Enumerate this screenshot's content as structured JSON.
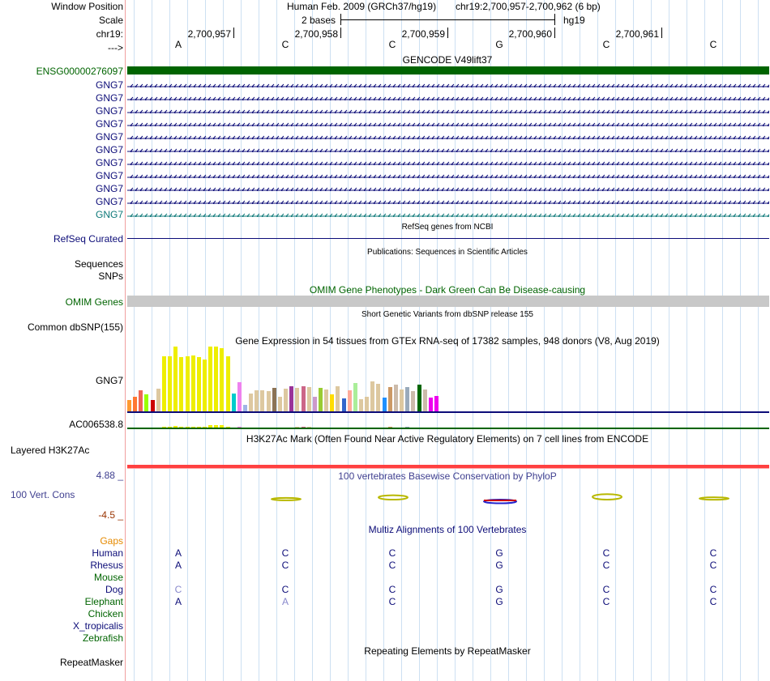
{
  "header": {
    "window_position_label": "Window Position",
    "scale_label": "Scale",
    "chrom_label": "chr19:",
    "strand_label": "--->",
    "assembly_text": "Human Feb. 2009 (GRCh37/hg19)",
    "position_text": "chr19:2,700,957-2,700,962 (6 bp)",
    "scale_text": "2 bases",
    "db_text": "hg19",
    "coords": [
      "2,700,957",
      "2,700,958",
      "2,700,959",
      "2,700,960",
      "2,700,961"
    ],
    "bases": [
      "A",
      "C",
      "C",
      "G",
      "C",
      "C"
    ]
  },
  "gencode": {
    "title": "GENCODE V49lift37",
    "gene_id": "ENSG00000276097",
    "transcripts": [
      "GNG7",
      "GNG7",
      "GNG7",
      "GNG7",
      "GNG7",
      "GNG7",
      "GNG7",
      "GNG7",
      "GNG7",
      "GNG7",
      "GNG7"
    ],
    "colors": {
      "gene": "#006400",
      "transcript": "#0c0c78",
      "last_transcript": "#0c7878"
    }
  },
  "refseq": {
    "title": "RefSeq genes from NCBI",
    "label": "RefSeq Curated"
  },
  "publications": {
    "title": "Publications: Sequences in Scientific Articles",
    "labels": [
      "Sequences",
      "SNPs"
    ]
  },
  "omim": {
    "title": "OMIM Gene Phenotypes - Dark Green Can Be Disease-causing",
    "label": "OMIM Genes"
  },
  "dbsnp": {
    "title": "Short Genetic Variants from dbSNP release 155",
    "label": "Common dbSNP(155)"
  },
  "gtex": {
    "title": "Gene Expression in 54 tissues from GTEx RNA-seq of 17382 samples, 948 donors (V8, Aug 2019)",
    "gene_label": "GNG7",
    "second_label": "AC006538.8",
    "gng7_values": [
      18,
      22,
      32,
      26,
      17,
      35,
      85,
      85,
      100,
      84,
      85,
      86,
      84,
      80,
      100,
      100,
      98,
      85,
      27,
      45,
      10,
      28,
      33,
      33,
      31,
      36,
      23,
      35,
      39,
      36,
      39,
      38,
      23,
      36,
      34,
      26,
      39,
      20,
      32,
      44,
      19,
      22,
      46,
      42,
      21,
      37,
      41,
      34,
      38,
      31,
      41,
      34,
      21,
      24
    ],
    "ac_values": [
      0,
      0,
      0,
      0,
      0,
      0,
      15,
      15,
      20,
      15,
      15,
      15,
      15,
      15,
      30,
      30,
      30,
      15,
      0,
      10,
      0,
      0,
      0,
      0,
      0,
      0,
      0,
      0,
      0,
      10,
      10,
      10,
      0,
      0,
      0,
      0,
      0,
      0,
      0,
      0,
      0,
      0,
      0,
      0,
      0,
      10,
      0,
      0,
      10,
      0,
      0,
      0,
      0,
      0
    ],
    "tissue_colors": [
      "#ff9933",
      "#ff7733",
      "#ee6655",
      "#99ff00",
      "#cc0000",
      "#ddc8a0",
      "#eeee00",
      "#eeee00",
      "#eeee00",
      "#eeee00",
      "#eeee00",
      "#eeee00",
      "#eeee00",
      "#eeee00",
      "#eeee00",
      "#eeee00",
      "#eeee00",
      "#eeee00",
      "#00cccc",
      "#ee82ee",
      "#a0b4e6",
      "#ddc8a0",
      "#ddc8a0",
      "#ddc8a0",
      "#ddc8a0",
      "#8b7355",
      "#ddc8a0",
      "#ddc8a0",
      "#993399",
      "#ddc8a0",
      "#cc6688",
      "#ddc8a0",
      "#cc99cc",
      "#99cc33",
      "#ddc8a0",
      "#ffdd00",
      "#ddc8a0",
      "#3366cc",
      "#ffaa99",
      "#aaee99",
      "#ddc8a0",
      "#ddc8a0",
      "#ddc8a0",
      "#ddc8a0",
      "#1e90ff",
      "#cc9966",
      "#ccbbaa",
      "#ddc8a0",
      "#99aabb",
      "#ccbbaa",
      "#006600",
      "#ccbbaa",
      "#ee00ee",
      "#ee00ee"
    ]
  },
  "h3k27ac": {
    "title": "H3K27Ac Mark (Often Found Near Active Regulatory Elements) on 7 cell lines from ENCODE",
    "label": "Layered H3K27Ac"
  },
  "phylop": {
    "title": "100 vertebrates Basewise Conservation by PhyloP",
    "label": "100 Vert. Cons",
    "max_label": "4.88 _",
    "min_label": "-4.5 _",
    "scores": [
      0.0,
      0.3,
      1.2,
      -1.0,
      1.5,
      0.6
    ]
  },
  "multiz": {
    "title": "Multiz Alignments of 100 Vertebrates",
    "gaps_label": "Gaps",
    "species": [
      {
        "name": "Human",
        "color": "#0c0c78",
        "bases": [
          "A",
          "C",
          "C",
          "G",
          "C",
          "C"
        ],
        "dim": [
          false,
          false,
          false,
          false,
          false,
          false
        ]
      },
      {
        "name": "Rhesus",
        "color": "#0c0c78",
        "bases": [
          "A",
          "C",
          "C",
          "G",
          "C",
          "C"
        ],
        "dim": [
          false,
          false,
          false,
          false,
          false,
          false
        ]
      },
      {
        "name": "Mouse",
        "color": "#006400",
        "bases": [
          "",
          "",
          "",
          "",
          "",
          ""
        ],
        "dim": [
          false,
          false,
          false,
          false,
          false,
          false
        ]
      },
      {
        "name": "Dog",
        "color": "#0c0c78",
        "bases": [
          "C",
          "C",
          "C",
          "G",
          "C",
          "C"
        ],
        "dim": [
          true,
          false,
          false,
          false,
          false,
          false
        ]
      },
      {
        "name": "Elephant",
        "color": "#006400",
        "bases": [
          "A",
          "A",
          "C",
          "G",
          "C",
          "C"
        ],
        "dim": [
          false,
          true,
          false,
          false,
          false,
          false
        ]
      },
      {
        "name": "Chicken",
        "color": "#006400",
        "bases": [
          "",
          "",
          "",
          "",
          "",
          ""
        ],
        "dim": [
          false,
          false,
          false,
          false,
          false,
          false
        ]
      },
      {
        "name": "X_tropicalis",
        "color": "#0c0c78",
        "bases": [
          "",
          "",
          "",
          "",
          "",
          ""
        ],
        "dim": [
          false,
          false,
          false,
          false,
          false,
          false
        ]
      },
      {
        "name": "Zebrafish",
        "color": "#006400",
        "bases": [
          "",
          "",
          "",
          "",
          "",
          ""
        ],
        "dim": [
          false,
          false,
          false,
          false,
          false,
          false
        ]
      }
    ]
  },
  "repeatmasker": {
    "title": "Repeating Elements by RepeatMasker",
    "label": "RepeatMasker"
  },
  "colors": {
    "accent_blue": "#0c0c78",
    "omim_gray": "#c8c8c8",
    "h3k27ac_red": "#ff4040",
    "phylop_label": "#404090"
  }
}
